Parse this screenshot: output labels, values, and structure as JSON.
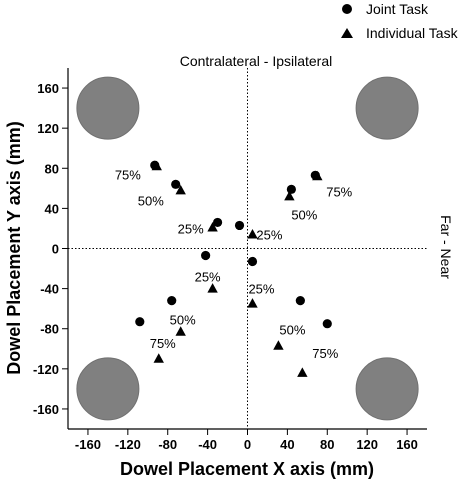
{
  "chart_data": {
    "type": "scatter",
    "xlabel": "Dowel Placement X axis (mm)",
    "ylabel": "Dowel Placement Y axis (mm)",
    "xlim": [
      -180,
      180
    ],
    "ylim": [
      -180,
      180
    ],
    "xticks": [
      "-160",
      "-120",
      "-80",
      "-40",
      "0",
      "40",
      "80",
      "120",
      "160"
    ],
    "yticks": [
      "160",
      "120",
      "80",
      "40",
      "0",
      "-40",
      "-80",
      "-120",
      "-160"
    ],
    "xtick_values": [
      -160,
      -120,
      -80,
      -40,
      0,
      40,
      80,
      120,
      160
    ],
    "ytick_values": [
      160,
      120,
      80,
      40,
      0,
      -40,
      -80,
      -120,
      -160
    ],
    "legend_position": "top-right",
    "grid": false,
    "reference_lines": "dotted lines at x = 0 and y = 0",
    "annotations": {
      "vertical": "Contralateral - Ipsilateral",
      "horizontal": "Far - Near"
    },
    "targets": [
      {
        "x": -140,
        "y": 140
      },
      {
        "x": 140,
        "y": 140
      },
      {
        "x": -140,
        "y": -140
      },
      {
        "x": 140,
        "y": -140
      }
    ],
    "series": [
      {
        "name": "Joint Task",
        "marker": "circle",
        "points": [
          {
            "x": -93,
            "y": 83
          },
          {
            "x": -72,
            "y": 64
          },
          {
            "x": -30,
            "y": 26
          },
          {
            "x": -8,
            "y": 23
          },
          {
            "x": 68,
            "y": 73
          },
          {
            "x": 44,
            "y": 59
          },
          {
            "x": -108,
            "y": -73
          },
          {
            "x": -76,
            "y": -52
          },
          {
            "x": -42,
            "y": -7
          },
          {
            "x": 5,
            "y": -13
          },
          {
            "x": 80,
            "y": -75
          },
          {
            "x": 53,
            "y": -52
          }
        ]
      },
      {
        "name": "Individual Task",
        "marker": "triangle",
        "points": [
          {
            "x": -91,
            "y": 82
          },
          {
            "x": -67,
            "y": 58
          },
          {
            "x": -35,
            "y": 21
          },
          {
            "x": 5,
            "y": 14
          },
          {
            "x": 70,
            "y": 72
          },
          {
            "x": 42,
            "y": 52
          },
          {
            "x": -89,
            "y": -110
          },
          {
            "x": -67,
            "y": -83
          },
          {
            "x": -35,
            "y": -40
          },
          {
            "x": 5,
            "y": -55
          },
          {
            "x": 55,
            "y": -124
          },
          {
            "x": 31,
            "y": -97
          }
        ]
      }
    ],
    "labels": [
      {
        "text": "75%",
        "x": -120,
        "y": 74
      },
      {
        "text": "50%",
        "x": -97,
        "y": 48
      },
      {
        "text": "25%",
        "x": -57,
        "y": 20
      },
      {
        "text": "25%",
        "x": 22,
        "y": 14
      },
      {
        "text": "50%",
        "x": 57,
        "y": 34
      },
      {
        "text": "75%",
        "x": 92,
        "y": 57
      },
      {
        "text": "25%",
        "x": -40,
        "y": -28
      },
      {
        "text": "25%",
        "x": 14,
        "y": -40
      },
      {
        "text": "50%",
        "x": -65,
        "y": -71
      },
      {
        "text": "50%",
        "x": 45,
        "y": -81
      },
      {
        "text": "75%",
        "x": -85,
        "y": -94
      },
      {
        "text": "75%",
        "x": 78,
        "y": -104
      }
    ]
  }
}
